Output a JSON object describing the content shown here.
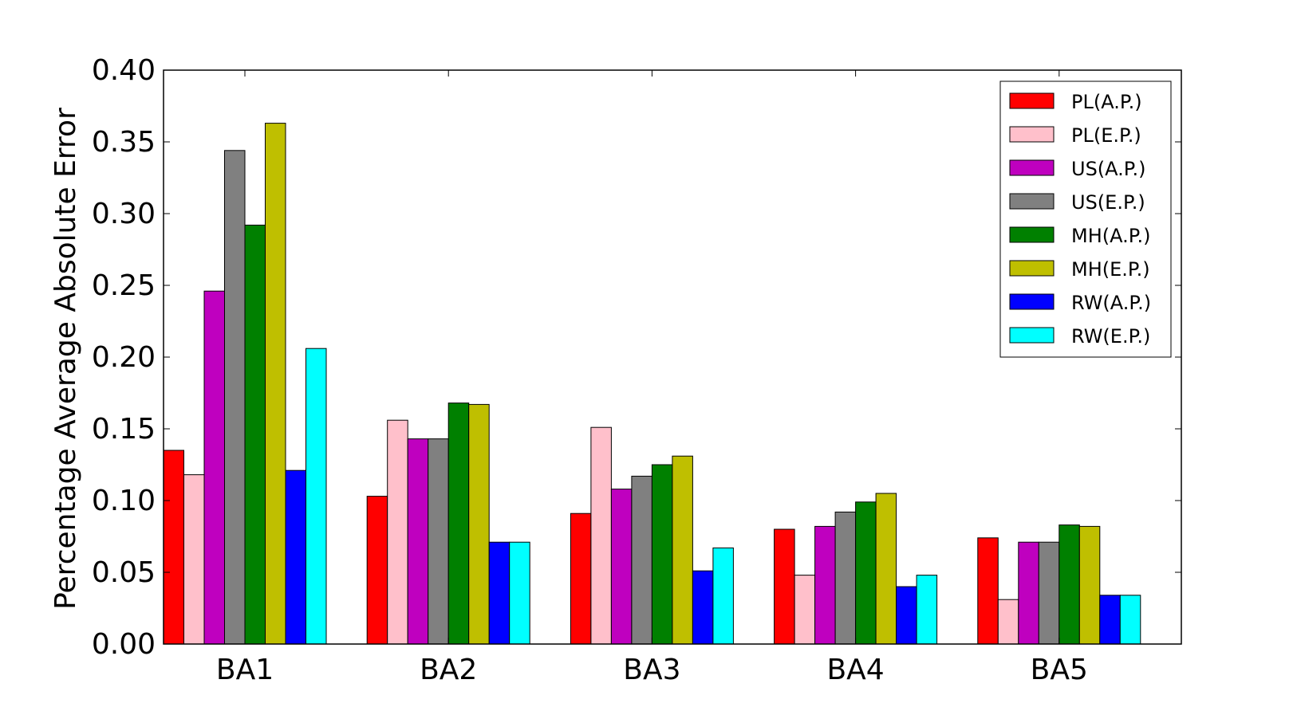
{
  "chart_data": {
    "type": "bar",
    "title": "",
    "xlabel": "",
    "ylabel": "Percentage Average Absolute Error",
    "ylim": [
      0,
      0.4
    ],
    "yticks": [
      "0.00",
      "0.05",
      "0.10",
      "0.15",
      "0.20",
      "0.25",
      "0.30",
      "0.35",
      "0.40"
    ],
    "categories": [
      "BA1",
      "BA2",
      "BA3",
      "BA4",
      "BA5"
    ],
    "legend_position": "top-right",
    "grid": false,
    "series": [
      {
        "name": "PL(A.P.)",
        "color": "#ff0000",
        "values": [
          0.135,
          0.103,
          0.091,
          0.08,
          0.074
        ]
      },
      {
        "name": "PL(E.P.)",
        "color": "#ffc0cb",
        "values": [
          0.118,
          0.156,
          0.151,
          0.048,
          0.031
        ]
      },
      {
        "name": "US(A.P.)",
        "color": "#bf00bf",
        "values": [
          0.246,
          0.143,
          0.108,
          0.082,
          0.071
        ]
      },
      {
        "name": "US(E.P.)",
        "color": "#808080",
        "values": [
          0.344,
          0.143,
          0.117,
          0.092,
          0.071
        ]
      },
      {
        "name": "MH(A.P.)",
        "color": "#008000",
        "values": [
          0.292,
          0.168,
          0.125,
          0.099,
          0.083
        ]
      },
      {
        "name": "MH(E.P.)",
        "color": "#bfbf00",
        "values": [
          0.363,
          0.167,
          0.131,
          0.105,
          0.082
        ]
      },
      {
        "name": "RW(A.P.)",
        "color": "#0000ff",
        "values": [
          0.121,
          0.071,
          0.051,
          0.04,
          0.034
        ]
      },
      {
        "name": "RW(E.P.)",
        "color": "#00ffff",
        "values": [
          0.206,
          0.071,
          0.067,
          0.048,
          0.034
        ]
      }
    ]
  }
}
